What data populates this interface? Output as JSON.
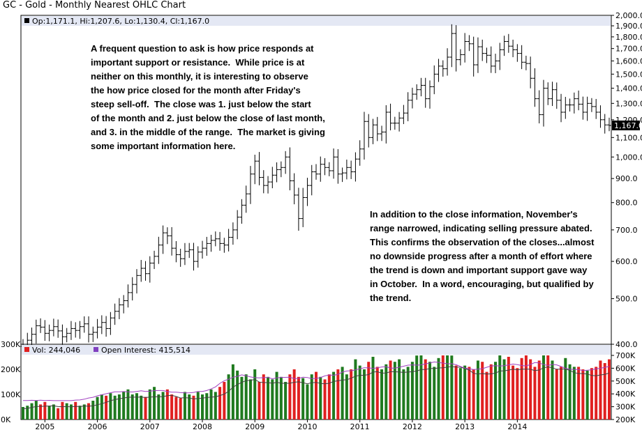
{
  "title": "GC - Gold - Monthly Nearest OHLC Chart",
  "legend": {
    "ohlc": "Op:1,171.1, Hi:1,207.6, Lo:1,130.4, Cl:1,167.0",
    "volume": "Vol: 244,046",
    "open_interest": "Open Interest: 415,514"
  },
  "last_price_label": "1,167.0",
  "annotations": {
    "note1": [
      "A frequent question to ask is how price responds at",
      "important support or resistance.  While price is at",
      "neither on this monthly, it is interesting to observe",
      "the how price closed for the month after Friday's",
      "steep sell-off.  The close was 1. just below the start",
      "of the month and 2. just below the close of last month,",
      "and 3. in the middle of the range.  The market is giving",
      "some important information here."
    ],
    "note2": [
      "In addition to the close information, November's",
      "range narrowed, indicating selling pressure abated.",
      "This confirms the observation of the closes...almost",
      "no downside progress after a month of effort where",
      "the trend is down and important support gave way",
      "in October.  In a word, encouraging, but qualified by",
      "the trend."
    ]
  },
  "colors": {
    "price_bar": "#000000",
    "vol_up": "#1f7a1f",
    "vol_down": "#e02020",
    "open_interest": "#a040c0",
    "volume_avg": "#404040",
    "legend_bg": "#e4e8f4",
    "vol_swatch": "#e02020",
    "oi_swatch": "#8040c0"
  },
  "chart_data": {
    "type": "ohlc",
    "price_axis": {
      "min": 400,
      "max": 2000,
      "ticks": [
        "2,000.0",
        "1,900.0",
        "1,800.0",
        "1,700.0",
        "1,600.0",
        "1,500.0",
        "1,400.0",
        "1,300.0",
        "1,200.0",
        "1,100.0",
        "1,000.0",
        "900.0",
        "800.0",
        "700.0",
        "600.0",
        "500.0",
        "400.0"
      ],
      "scale": "log"
    },
    "volume_axis": {
      "min": 0,
      "max": 300000,
      "ticks": [
        "300K",
        "200K",
        "100K",
        "0K"
      ]
    },
    "oi_axis": {
      "min": 200000,
      "max": 700000,
      "ticks": [
        "700K",
        "600K",
        "500K",
        "400K",
        "300K",
        "200K"
      ]
    },
    "x_years": [
      "2005",
      "2006",
      "2007",
      "2008",
      "2009",
      "2010",
      "2011",
      "2012",
      "2013",
      "2014"
    ],
    "start_month": "2004-08",
    "price_closes": [
      400,
      408,
      420,
      438,
      435,
      422,
      428,
      436,
      427,
      415,
      422,
      432,
      428,
      436,
      442,
      420,
      424,
      435,
      445,
      432,
      455,
      470,
      485,
      495,
      515,
      536,
      560,
      580,
      565,
      595,
      615,
      650,
      690,
      680,
      640,
      620,
      608,
      630,
      635,
      600,
      628,
      640,
      655,
      665,
      670,
      655,
      650,
      675,
      700,
      745,
      790,
      835,
      920,
      980,
      905,
      870,
      885,
      915,
      940,
      950,
      1000,
      890,
      830,
      740,
      820,
      870,
      930,
      920,
      965,
      950,
      935,
      1000,
      920,
      925,
      950,
      930,
      990,
      1040,
      1190,
      1100,
      1170,
      1120,
      1130,
      1245,
      1180,
      1180,
      1210,
      1240,
      1320,
      1360,
      1390,
      1420,
      1330,
      1410,
      1500,
      1560,
      1540,
      1630,
      1830,
      1610,
      1650,
      1760,
      1740,
      1570,
      1715,
      1660,
      1645,
      1560,
      1600,
      1690,
      1760,
      1720,
      1690,
      1660,
      1590,
      1580,
      1470,
      1330,
      1230,
      1400,
      1330,
      1390,
      1320,
      1245,
      1290,
      1290,
      1330,
      1295,
      1245,
      1300,
      1280,
      1245,
      1200,
      1170,
      1167
    ],
    "volume_k": [
      50,
      55,
      65,
      75,
      60,
      70,
      55,
      60,
      45,
      70,
      65,
      60,
      70,
      55,
      60,
      65,
      75,
      90,
      100,
      95,
      105,
      95,
      100,
      110,
      120,
      100,
      105,
      95,
      90,
      120,
      130,
      100,
      110,
      120,
      100,
      90,
      85,
      110,
      100,
      95,
      110,
      100,
      105,
      120,
      110,
      130,
      150,
      180,
      220,
      195,
      170,
      180,
      160,
      200,
      150,
      180,
      170,
      160,
      190,
      170,
      150,
      180,
      200,
      170,
      165,
      140,
      180,
      190,
      170,
      160,
      180,
      190,
      200,
      210,
      180,
      200,
      240,
      215,
      200,
      230,
      250,
      210,
      200,
      220,
      235,
      230,
      240,
      200,
      210,
      230,
      255,
      270,
      240,
      230,
      210,
      245,
      260,
      290,
      255,
      215,
      205,
      215,
      210,
      200,
      235,
      230,
      190,
      220,
      230,
      260,
      240,
      250,
      215,
      205,
      245,
      260,
      240,
      210,
      235,
      265,
      270,
      235,
      200,
      210,
      245,
      220,
      210,
      210,
      200,
      195,
      205,
      210,
      235,
      225,
      240,
      250,
      270,
      175
    ]
  }
}
